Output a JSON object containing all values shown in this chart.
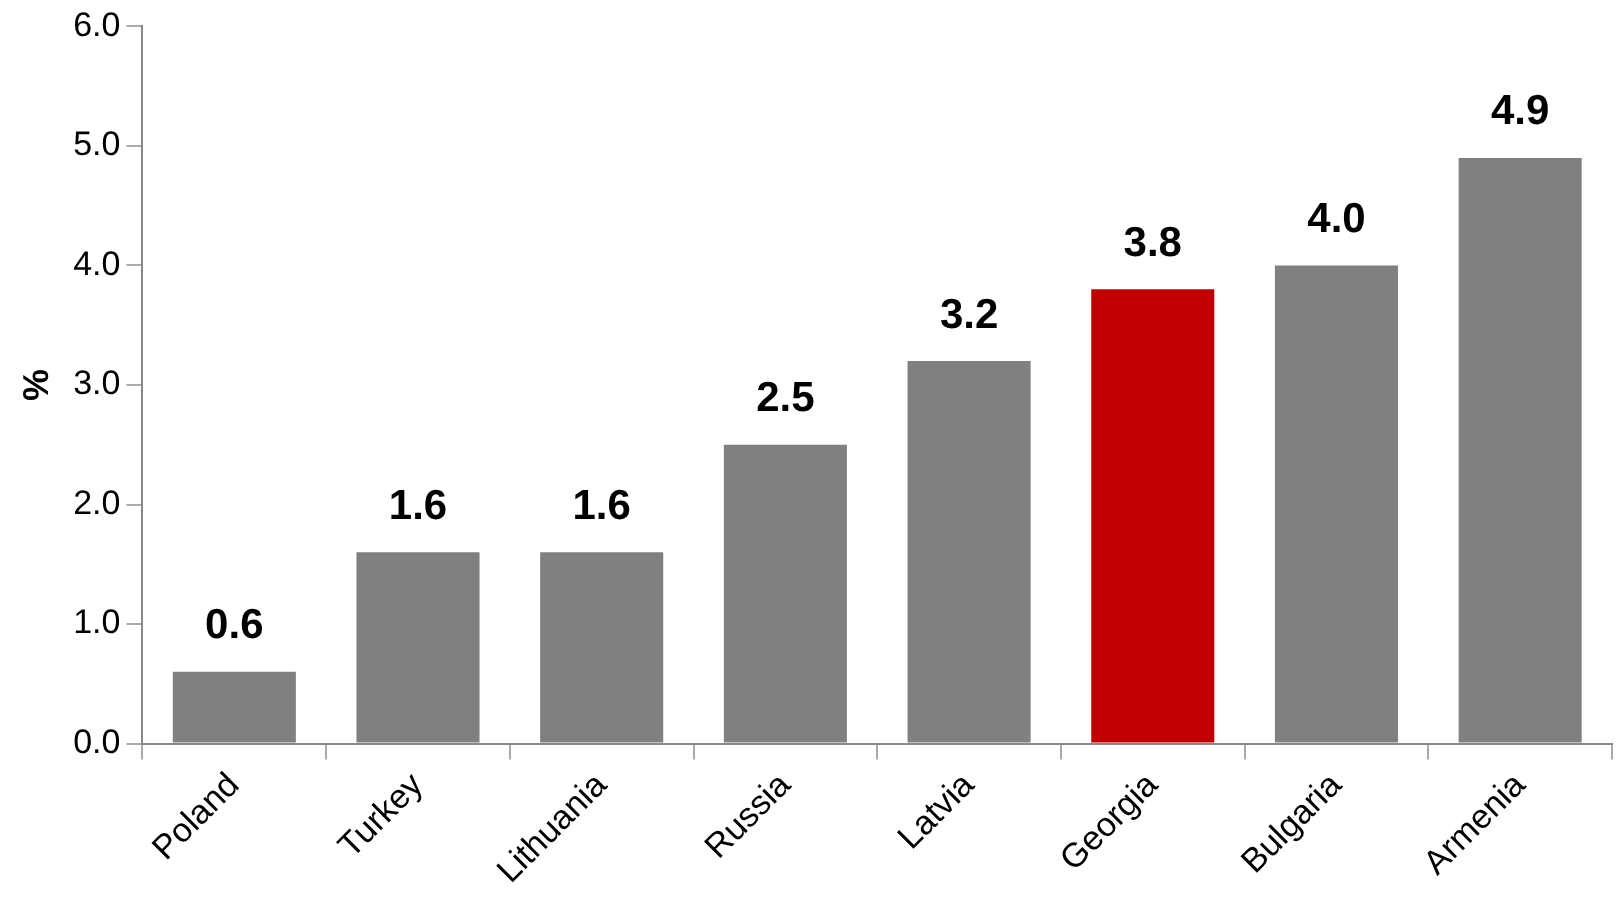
{
  "chart_data": {
    "type": "bar",
    "ylabel": "%",
    "categories": [
      "Poland",
      "Turkey",
      "Lithuania",
      "Russia",
      "Latvia",
      "Georgia",
      "Bulgaria",
      "Armenia"
    ],
    "values": [
      0.6,
      1.6,
      1.6,
      2.5,
      3.2,
      3.8,
      4.0,
      4.9
    ],
    "colors": [
      "#808080",
      "#808080",
      "#808080",
      "#808080",
      "#808080",
      "#c00000",
      "#808080",
      "#808080"
    ],
    "value_labels": [
      "0.6",
      "1.6",
      "1.6",
      "2.5",
      "3.2",
      "3.8",
      "4.0",
      "4.9"
    ],
    "ylim": [
      0,
      6
    ],
    "yticks": [
      {
        "value": 0,
        "label": "0.0"
      },
      {
        "value": 1,
        "label": "1.0"
      },
      {
        "value": 2,
        "label": "2.0"
      },
      {
        "value": 3,
        "label": "3.0"
      },
      {
        "value": 4,
        "label": "4.0"
      },
      {
        "value": 5,
        "label": "5.0"
      },
      {
        "value": 6,
        "label": "6.0"
      }
    ],
    "grid": false,
    "legend": false
  }
}
